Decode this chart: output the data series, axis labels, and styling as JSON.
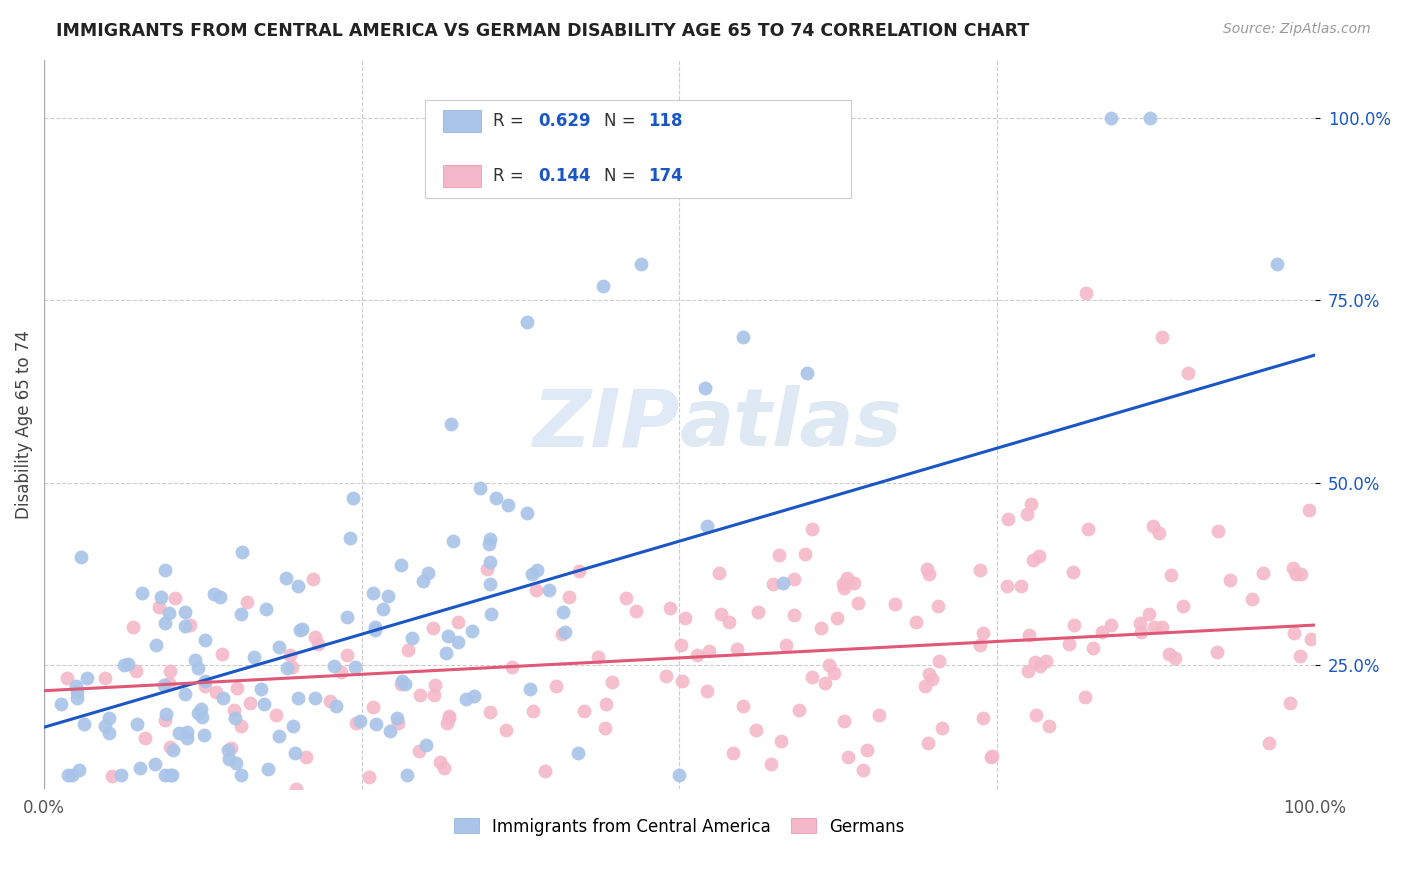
{
  "title": "IMMIGRANTS FROM CENTRAL AMERICA VS GERMAN DISABILITY AGE 65 TO 74 CORRELATION CHART",
  "source": "Source: ZipAtlas.com",
  "ylabel": "Disability Age 65 to 74",
  "blue_scatter_color": "#a8c4e8",
  "pink_scatter_color": "#f4b8c8",
  "blue_line_color": "#1a56c4",
  "pink_line_color": "#e05878",
  "legend_text_color": "#1a56c4",
  "watermark_color": "#c8d8f0",
  "background_color": "#ffffff",
  "grid_color": "#cccccc",
  "blue_R": "0.629",
  "blue_N": "118",
  "pink_R": "0.144",
  "pink_N": "174",
  "blue_line_x": [
    0.0,
    1.0
  ],
  "blue_line_y": [
    0.165,
    0.675
  ],
  "pink_line_x": [
    0.0,
    1.0
  ],
  "pink_line_y": [
    0.215,
    0.305
  ],
  "legend_label_blue": "Immigrants from Central America",
  "legend_label_pink": "Germans",
  "xlim": [
    0.0,
    1.0
  ],
  "ylim": [
    0.08,
    1.08
  ],
  "yticks": [
    0.25,
    0.5,
    0.75,
    1.0
  ],
  "ytick_labels": [
    "25.0%",
    "50.0%",
    "75.0%",
    "100.0%"
  ],
  "xticks": [
    0.0,
    1.0
  ],
  "xtick_labels": [
    "0.0%",
    "100.0%"
  ]
}
